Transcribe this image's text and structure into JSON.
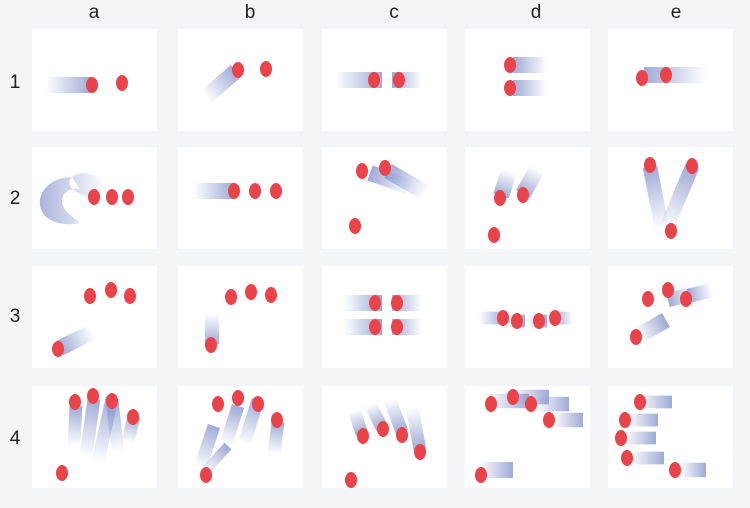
{
  "columns": [
    "a",
    "b",
    "c",
    "d",
    "e"
  ],
  "rows": [
    "1",
    "2",
    "3",
    "4"
  ],
  "colors": {
    "dot": "#ea4349",
    "trail": "#8e9bcf",
    "panel": "#ffffff",
    "background": "#f4f5f8"
  },
  "panels": {
    "1a": {
      "trails": [
        [
          14,
          56,
          60,
          56,
          10
        ]
      ],
      "dots": [
        [
          60,
          56
        ],
        [
          90,
          54
        ]
      ]
    },
    "1b": {
      "trails": [
        [
          28,
          68,
          58,
          42,
          10
        ]
      ],
      "dots": [
        [
          60,
          41
        ],
        [
          88,
          40
        ]
      ]
    },
    "1c": {
      "trails": [
        [
          14,
          51,
          60,
          51,
          10
        ],
        [
          100,
          51,
          70,
          51,
          10
        ]
      ],
      "dots": [
        [
          52,
          51
        ],
        [
          77,
          51
        ]
      ]
    },
    "1d": {
      "trails": [
        [
          82,
          36,
          48,
          36,
          10
        ],
        [
          82,
          59,
          48,
          59,
          10
        ]
      ],
      "dots": [
        [
          45,
          36
        ],
        [
          45,
          59
        ]
      ]
    },
    "1e": {
      "trails": [
        [
          98,
          46,
          36,
          46,
          10
        ]
      ],
      "dots": [
        [
          34,
          49
        ],
        [
          58,
          46
        ]
      ]
    },
    "2a": {
      "trails": [],
      "dots": [
        [
          62,
          50
        ],
        [
          80,
          50
        ],
        [
          96,
          50
        ]
      ],
      "swirl": true
    },
    "2b": {
      "trails": [
        [
          16,
          44,
          56,
          44,
          10
        ]
      ],
      "dots": [
        [
          56,
          44
        ],
        [
          77,
          44
        ],
        [
          98,
          44
        ]
      ]
    },
    "2c": {
      "trails": [
        [
          88,
          40,
          48,
          26,
          10
        ],
        [
          104,
          46,
          66,
          24,
          10
        ]
      ],
      "dots": [
        [
          40,
          24
        ],
        [
          63,
          21
        ],
        [
          33,
          79
        ]
      ]
    },
    "2d": {
      "trails": [
        [
          44,
          24,
          36,
          49,
          10
        ],
        [
          72,
          22,
          58,
          47,
          10
        ]
      ],
      "dots": [
        [
          35,
          51
        ],
        [
          58,
          48
        ],
        [
          29,
          88
        ]
      ]
    },
    "2e": {
      "trails": [
        [
          54,
          82,
          42,
          20,
          9
        ],
        [
          58,
          82,
          84,
          20,
          9
        ]
      ],
      "dots": [
        [
          42,
          18
        ],
        [
          84,
          19
        ],
        [
          63,
          84
        ]
      ]
    },
    "3a": {
      "trails": [
        [
          60,
          66,
          28,
          82,
          10
        ]
      ],
      "dots": [
        [
          58,
          30
        ],
        [
          79,
          24
        ],
        [
          98,
          30
        ],
        [
          26,
          83
        ]
      ]
    },
    "3b": {
      "trails": [
        [
          34,
          48,
          34,
          78,
          9
        ]
      ],
      "dots": [
        [
          53,
          31
        ],
        [
          73,
          26
        ],
        [
          93,
          29
        ],
        [
          33,
          79
        ]
      ]
    },
    "3c": {
      "trails": [
        [
          22,
          37,
          60,
          37,
          10
        ],
        [
          100,
          37,
          70,
          37,
          10
        ],
        [
          22,
          61,
          60,
          61,
          10
        ],
        [
          100,
          61,
          70,
          61,
          10
        ]
      ],
      "dots": [
        [
          53,
          37
        ],
        [
          75,
          37
        ],
        [
          53,
          61
        ],
        [
          75,
          61
        ]
      ]
    },
    "3d": {
      "trails": [
        [
          14,
          52,
          40,
          52,
          8
        ],
        [
          42,
          55,
          60,
          55,
          8
        ],
        [
          108,
          52,
          90,
          52,
          8
        ],
        [
          64,
          55,
          82,
          55,
          8
        ]
      ],
      "dots": [
        [
          38,
          52
        ],
        [
          52,
          55
        ],
        [
          74,
          55
        ],
        [
          90,
          52
        ]
      ]
    },
    "3e": {
      "trails": [
        [
          86,
          28,
          60,
          34,
          9
        ],
        [
          104,
          24,
          80,
          30,
          9
        ],
        [
          30,
          70,
          58,
          54,
          10
        ]
      ],
      "dots": [
        [
          40,
          33
        ],
        [
          60,
          24
        ],
        [
          78,
          33
        ],
        [
          28,
          71
        ]
      ]
    },
    "4a": {
      "trails": [
        [
          42,
          60,
          44,
          20,
          8
        ],
        [
          54,
          70,
          62,
          13,
          8
        ],
        [
          66,
          76,
          80,
          12,
          8
        ],
        [
          86,
          66,
          80,
          14,
          8
        ],
        [
          96,
          56,
          102,
          30,
          8
        ]
      ],
      "dots": [
        [
          43,
          16
        ],
        [
          61,
          10
        ],
        [
          80,
          15
        ],
        [
          101,
          31
        ],
        [
          30,
          87
        ]
      ]
    },
    "4b": {
      "trails": [
        [
          22,
          82,
          36,
          40,
          8
        ],
        [
          48,
          58,
          60,
          20,
          8
        ],
        [
          66,
          58,
          80,
          14,
          8
        ],
        [
          96,
          68,
          100,
          36,
          8
        ],
        [
          26,
          86,
          50,
          60,
          6
        ]
      ],
      "dots": [
        [
          40,
          18
        ],
        [
          60,
          12
        ],
        [
          80,
          18
        ],
        [
          99,
          34
        ],
        [
          28,
          89
        ]
      ]
    },
    "4c": {
      "trails": [
        [
          32,
          24,
          40,
          48,
          8
        ],
        [
          48,
          18,
          60,
          42,
          8
        ],
        [
          68,
          14,
          80,
          46,
          8
        ],
        [
          90,
          22,
          98,
          64,
          8
        ]
      ],
      "dots": [
        [
          41,
          50
        ],
        [
          61,
          43
        ],
        [
          80,
          49
        ],
        [
          98,
          66
        ],
        [
          29,
          94
        ]
      ]
    },
    "4d": {
      "trails": [
        [
          22,
          15,
          64,
          15,
          9
        ],
        [
          46,
          11,
          84,
          11,
          9
        ],
        [
          70,
          18,
          104,
          18,
          9
        ],
        [
          88,
          34,
          118,
          34,
          9
        ],
        [
          14,
          84,
          48,
          84,
          10
        ]
      ],
      "dots": [
        [
          26,
          18
        ],
        [
          48,
          11
        ],
        [
          66,
          18
        ],
        [
          84,
          34
        ],
        [
          16,
          89
        ]
      ]
    },
    "4e": {
      "trails": [
        [
          30,
          16,
          64,
          16,
          8
        ],
        [
          20,
          34,
          50,
          34,
          8
        ],
        [
          16,
          52,
          48,
          52,
          8
        ],
        [
          22,
          72,
          56,
          72,
          8
        ],
        [
          72,
          84,
          98,
          84,
          9
        ]
      ],
      "dots": [
        [
          32,
          16
        ],
        [
          17,
          34
        ],
        [
          13,
          52
        ],
        [
          19,
          72
        ],
        [
          67,
          84
        ]
      ]
    }
  }
}
